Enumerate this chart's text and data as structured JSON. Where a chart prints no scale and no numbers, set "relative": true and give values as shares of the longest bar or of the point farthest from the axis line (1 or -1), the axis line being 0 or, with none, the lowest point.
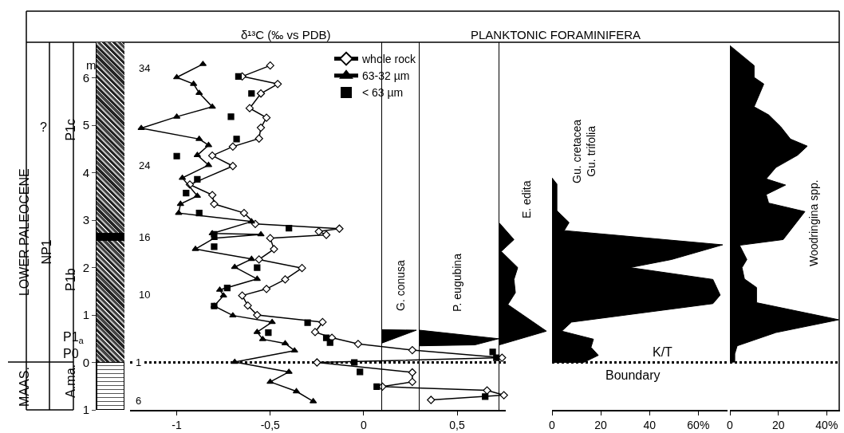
{
  "chart_data": [
    {
      "type": "line",
      "title": "δ¹³C (‰ vs PDB)",
      "ylabel": "m",
      "orientation": "horizontal",
      "xlim": [
        -1.25,
        0.76
      ],
      "xticks": [
        -1,
        {
          "value": -0.5,
          "label": "-0,5"
        },
        0,
        {
          "value": 0.5,
          "label": "0,5"
        }
      ],
      "ylim": [
        -1,
        6.75
      ],
      "yticks": [
        {
          "value": -1,
          "label": "1"
        },
        0,
        1,
        2,
        3,
        4,
        5,
        6
      ],
      "legend": "top right",
      "ref_lines": [
        {
          "axis": "y",
          "value": 0,
          "line_style": "dotted"
        }
      ],
      "annotations": [
        "LOWER PALEOCENE",
        "MAAS.",
        "NP1",
        "?",
        "P1c",
        "P1b",
        "P1$_{a}$",
        "P0",
        "A.ma.",
        "34",
        "24",
        "16",
        "10",
        "1",
        "6"
      ],
      "series": [
        {
          "name": "whole rock",
          "marker": "diamond",
          "color": "#000000",
          "x": [
            6.26,
            6.03,
            5.87,
            5.67,
            5.36,
            5.16,
            4.95,
            4.72,
            4.55,
            4.36,
            4.14,
            3.75,
            3.53,
            3.34,
            3.15,
            2.92,
            2.82,
            2.76,
            2.69,
            2.62,
            2.39,
            2.17,
            1.99,
            1.75,
            1.55,
            1.41,
            1.2,
            1.0,
            0.85,
            0.64,
            0.52,
            0.39,
            0.26,
            0.1,
            0.0,
            -0.21,
            -0.41,
            -0.51,
            -0.59,
            -0.69,
            -0.79
          ],
          "values": [
            -0.5,
            -0.65,
            -0.46,
            -0.55,
            -0.61,
            -0.52,
            -0.55,
            -0.56,
            -0.7,
            -0.81,
            -0.7,
            -0.93,
            -0.81,
            -0.8,
            -0.64,
            -0.58,
            -0.13,
            -0.24,
            -0.2,
            -0.5,
            -0.48,
            -0.56,
            -0.33,
            -0.42,
            -0.52,
            -0.65,
            -0.62,
            -0.57,
            -0.22,
            -0.26,
            -0.17,
            -0.03,
            0.26,
            0.74,
            -0.25,
            0.26,
            0.26,
            0.1,
            0.66,
            0.75,
            0.36
          ]
        },
        {
          "name": "63-32 µm",
          "marker": "triangle",
          "color": "#000000",
          "x": [
            6.29,
            6.01,
            5.87,
            5.68,
            5.39,
            5.18,
            4.94,
            4.71,
            4.58,
            4.37,
            4.16,
            3.89,
            3.51,
            3.34,
            3.15,
            2.97,
            2.72,
            2.7,
            2.62,
            2.39,
            2.18,
            2.01,
            1.76,
            1.53,
            1.41,
            1.19,
            0.99,
            0.85,
            0.64,
            0.49,
            0.4,
            0.25,
            0.01,
            -0.2,
            -0.41,
            -0.61,
            -0.82
          ],
          "values": [
            -0.86,
            -1.0,
            -0.91,
            -0.88,
            -0.81,
            -1.0,
            -1.19,
            -0.88,
            -0.83,
            -0.89,
            -0.83,
            -0.97,
            -0.89,
            -0.98,
            -0.99,
            -0.6,
            -0.81,
            -0.55,
            -0.8,
            -0.9,
            -0.6,
            -0.69,
            -0.57,
            -0.77,
            -0.75,
            -0.8,
            -0.7,
            -0.49,
            -0.57,
            -0.54,
            -0.42,
            -0.37,
            -0.69,
            -0.4,
            -0.5,
            -0.36,
            -0.27
          ]
        },
        {
          "name": "< 63 µm",
          "type": "scatter",
          "marker": "square",
          "color": "#000000",
          "x": [
            6.03,
            5.67,
            5.18,
            4.71,
            4.35,
            3.86,
            3.57,
            3.15,
            2.83,
            2.7,
            2.44,
            2.0,
            1.57,
            1.19,
            0.84,
            0.63,
            0.52,
            0.42,
            0.22,
            0.1,
            0.0,
            -0.2,
            -0.51,
            -0.72
          ],
          "values": [
            -0.67,
            -0.6,
            -0.71,
            -0.68,
            -1.0,
            -0.89,
            -0.95,
            -0.88,
            -0.4,
            -0.8,
            -0.8,
            -0.57,
            -0.73,
            -0.8,
            -0.3,
            -0.51,
            -0.2,
            -0.18,
            0.69,
            0.71,
            -0.05,
            -0.02,
            0.07,
            0.65
          ]
        }
      ]
    },
    {
      "type": "area",
      "orientation": "horizontal",
      "relative": true,
      "ylim": [
        -1,
        6.75
      ],
      "tick_labels": false,
      "series": [
        {
          "name": "G. conusa",
          "color": "#000000",
          "x": [
            0.69,
            0.68,
            0.41
          ],
          "values": [
            0,
            1,
            0
          ]
        }
      ]
    },
    {
      "type": "area",
      "orientation": "horizontal",
      "relative": true,
      "ylim": [
        -1,
        6.75
      ],
      "tick_labels": false,
      "series": [
        {
          "name": "P. eugubina",
          "color": "#000000",
          "x": [
            0.68,
            0.5,
            0.37,
            0.35
          ],
          "values": [
            0,
            1,
            0.7,
            0
          ]
        }
      ]
    },
    {
      "type": "area",
      "orientation": "horizontal",
      "relative": true,
      "ylim": [
        -1,
        6.75
      ],
      "tick_labels": false,
      "series": [
        {
          "name": "E. edita",
          "color": "#000000",
          "x": [
            2.94,
            2.59,
            2.34,
            2.0,
            1.75,
            1.47,
            1.22,
            0.66,
            0.37
          ],
          "values": [
            0,
            0.31,
            0.04,
            0.39,
            0.31,
            0.34,
            0.18,
            1,
            0
          ]
        }
      ]
    },
    {
      "type": "area",
      "orientation": "horizontal",
      "title": "PLANKTONIC FORAMINIFERA",
      "xlim": [
        0,
        72
      ],
      "xticks": [
        0,
        20,
        40,
        {
          "value": 60,
          "label": "60%"
        }
      ],
      "ylim": [
        -1,
        6.75
      ],
      "tick_labels": "x",
      "ref_lines": [
        {
          "axis": "y",
          "value": 0,
          "line_style": "dotted"
        }
      ],
      "annotations": [
        {
          "text": "K/T",
          "y": 0
        },
        {
          "text": "Boundary",
          "y": 0
        }
      ],
      "series": [
        {
          "name": "Gu. cretacea\nGu. trifolia",
          "color": "#000000",
          "x": [
            3.89,
            3.76,
            3.2,
            2.95,
            2.78,
            2.48,
            2.17,
            2.0,
            1.75,
            1.42,
            1.24,
            0.85,
            0.66,
            0.49,
            0.32,
            0.15,
            0.0,
            0.0
          ],
          "values": [
            0,
            2,
            2,
            7,
            5,
            70,
            49,
            32,
            66,
            69,
            66,
            8,
            4,
            17,
            16,
            19,
            13,
            0
          ]
        }
      ]
    },
    {
      "type": "area",
      "orientation": "horizontal",
      "xlim": [
        0,
        45.5
      ],
      "xticks": [
        0,
        20,
        {
          "value": 40,
          "label": "40%"
        }
      ],
      "ylim": [
        -1,
        6.75
      ],
      "tick_labels": "x",
      "ref_lines": [
        {
          "axis": "y",
          "value": 0,
          "line_style": "dotted"
        }
      ],
      "series": [
        {
          "name": "Woodringina spp.",
          "color": "#000000",
          "x": [
            6.68,
            6.26,
            6.01,
            5.87,
            5.39,
            5.22,
            4.97,
            4.71,
            4.56,
            4.37,
            4.11,
            3.87,
            3.74,
            3.54,
            3.36,
            3.18,
            2.59,
            2.47,
            2.17,
            2.0,
            1.76,
            1.58,
            1.26,
            0.9,
            0.63,
            0.35,
            0.18,
            0.01,
            0.0
          ],
          "values": [
            0,
            10,
            10,
            14,
            10,
            16,
            21,
            25,
            32,
            28,
            19,
            15,
            23,
            15,
            16,
            31,
            22,
            4,
            7,
            5,
            6,
            11,
            11,
            45,
            19,
            3,
            2,
            2,
            0
          ]
        }
      ]
    }
  ]
}
